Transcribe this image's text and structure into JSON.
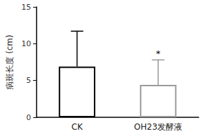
{
  "chart_data": {
    "type": "bar",
    "y_label": "病斑长度 (cm)",
    "categories": [
      "CK",
      "OH23发酵液"
    ],
    "values": [
      6.9,
      4.4
    ],
    "errors": [
      4.8,
      3.4
    ],
    "colors": [
      "#000000",
      "#999999"
    ],
    "annotations": [
      {
        "category": "OH23发酵液",
        "text": "*"
      }
    ],
    "ylim": [
      0,
      15
    ],
    "yticks": [
      0,
      5,
      10,
      15
    ],
    "grid": false
  }
}
